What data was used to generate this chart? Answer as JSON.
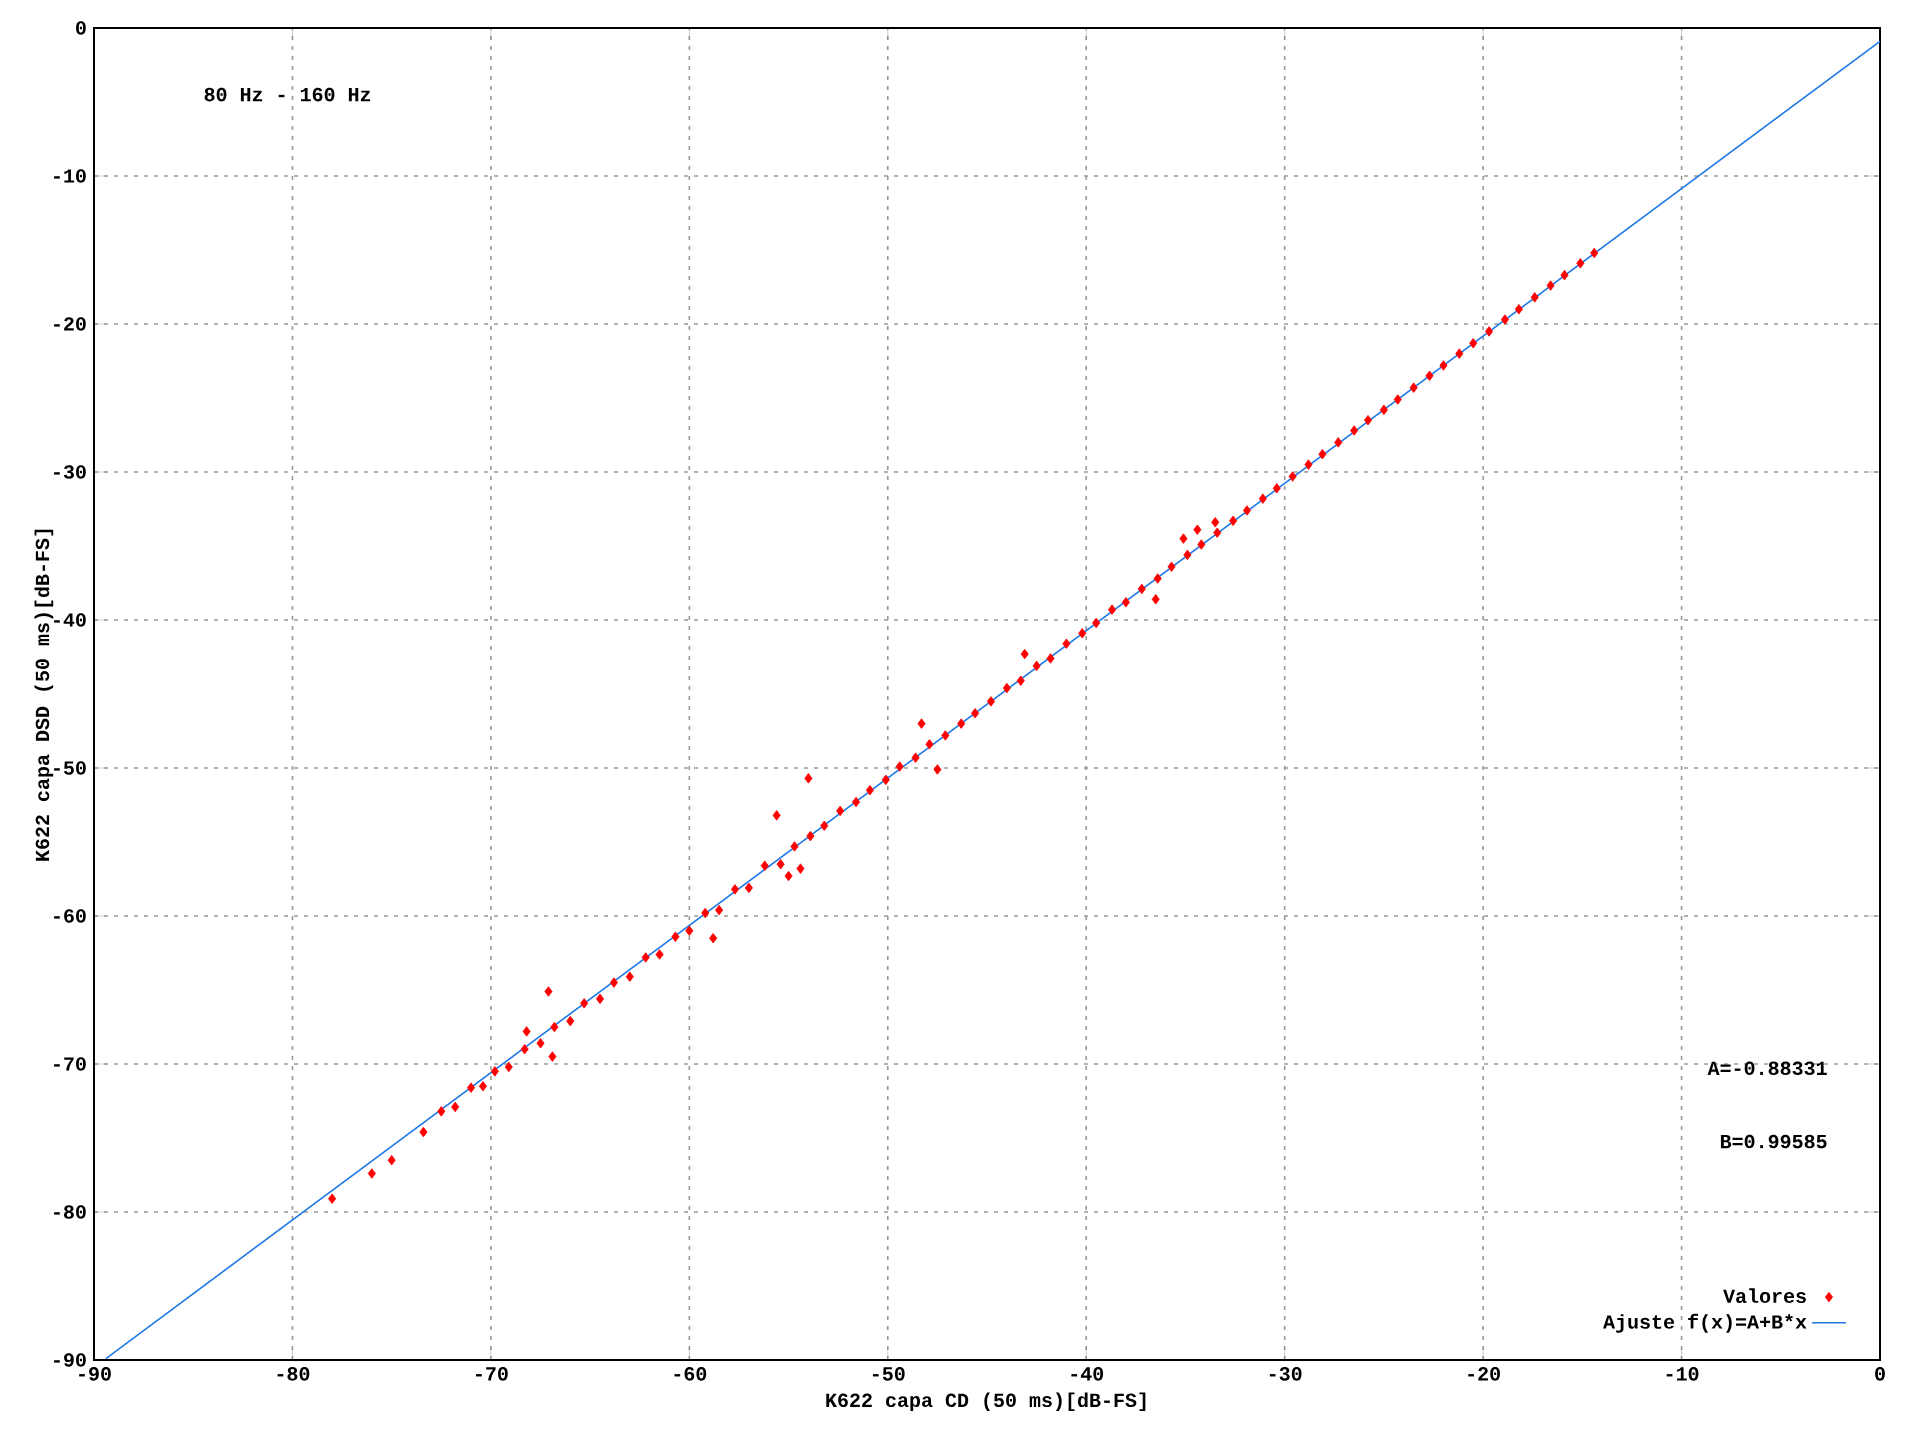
{
  "chart_data": {
    "type": "scatter",
    "xlabel": "K622 capa CD (50 ms)[dB-FS]",
    "ylabel": "K622 capa DSD (50 ms)[dB-FS]",
    "annotations": [
      "80 Hz - 160 Hz",
      "A=-0.88331",
      "B=0.99585"
    ],
    "xlim": [
      -90,
      0
    ],
    "ylim": [
      -90,
      0
    ],
    "xticks": [
      -90,
      -80,
      -70,
      -60,
      -50,
      -40,
      -30,
      -20,
      -10,
      0
    ],
    "yticks": [
      -90,
      -80,
      -70,
      -60,
      -50,
      -40,
      -30,
      -20,
      -10,
      0
    ],
    "grid": true,
    "legend": "bottom right",
    "marker": "diamond",
    "series": [
      {
        "name": "Valores",
        "color": "#ff0000",
        "x": [
          -78.0,
          -76.0,
          -75.0,
          -73.4,
          -72.5,
          -71.8,
          -71.0,
          -70.4,
          -69.8,
          -69.1,
          -68.3,
          -67.5,
          -66.8,
          -66.0,
          -65.3,
          -64.5,
          -63.8,
          -63.0,
          -62.2,
          -61.5,
          -60.7,
          -60.0,
          -59.2,
          -58.5,
          -57.7,
          -57.0,
          -56.2,
          -55.4,
          -54.7,
          -53.9,
          -53.2,
          -52.4,
          -51.6,
          -50.9,
          -50.1,
          -49.4,
          -48.6,
          -47.9,
          -47.1,
          -46.3,
          -45.6,
          -44.8,
          -44.0,
          -43.3,
          -42.5,
          -41.8,
          -41.0,
          -40.2,
          -39.5,
          -38.7,
          -38.0,
          -37.2,
          -36.4,
          -35.7,
          -34.9,
          -34.2,
          -33.4,
          -32.6,
          -31.9,
          -31.1,
          -30.4,
          -29.6,
          -28.8,
          -28.1,
          -27.3,
          -26.5,
          -25.8,
          -25.0,
          -24.3,
          -23.5,
          -22.7,
          -22.0,
          -21.2,
          -20.5,
          -19.7,
          -18.9,
          -18.2,
          -17.4,
          -16.6,
          -15.9,
          -15.1,
          -14.4,
          -67.1,
          -54.0,
          -68.2,
          -66.9,
          -55.6,
          -48.3,
          -47.5,
          -58.8,
          -54.4,
          -55.0,
          -35.1,
          -34.4,
          -33.5,
          -36.5,
          -43.1
        ],
        "values": [
          -79.1,
          -77.4,
          -76.5,
          -74.6,
          -73.2,
          -72.9,
          -71.6,
          -71.5,
          -70.5,
          -70.2,
          -69.0,
          -68.6,
          -67.5,
          -67.1,
          -65.9,
          -65.6,
          -64.5,
          -64.1,
          -62.8,
          -62.6,
          -61.4,
          -61.0,
          -59.8,
          -59.6,
          -58.2,
          -58.1,
          -56.6,
          -56.5,
          -55.3,
          -54.6,
          -53.9,
          -52.9,
          -52.3,
          -51.5,
          -50.8,
          -49.9,
          -49.3,
          -48.4,
          -47.8,
          -47.0,
          -46.3,
          -45.5,
          -44.6,
          -44.1,
          -43.1,
          -42.6,
          -41.6,
          -40.9,
          -40.2,
          -39.3,
          -38.8,
          -37.9,
          -37.2,
          -36.4,
          -35.6,
          -34.9,
          -34.1,
          -33.3,
          -32.6,
          -31.8,
          -31.1,
          -30.3,
          -29.5,
          -28.8,
          -28.0,
          -27.2,
          -26.5,
          -25.8,
          -25.1,
          -24.3,
          -23.5,
          -22.8,
          -22.0,
          -21.3,
          -20.5,
          -19.7,
          -19.0,
          -18.2,
          -17.4,
          -16.7,
          -15.9,
          -15.2,
          -65.1,
          -50.7,
          -67.8,
          -69.5,
          -53.2,
          -47.0,
          -50.1,
          -61.5,
          -56.8,
          -57.3,
          -34.5,
          -33.9,
          -33.4,
          -38.6,
          -42.3
        ]
      },
      {
        "name": "Ajuste f(x)=A+B*x",
        "color": "#1e78e6",
        "type": "line",
        "marker": "none",
        "x": [
          -89.4,
          0
        ],
        "values": [
          -89.9,
          -0.9
        ]
      }
    ]
  }
}
